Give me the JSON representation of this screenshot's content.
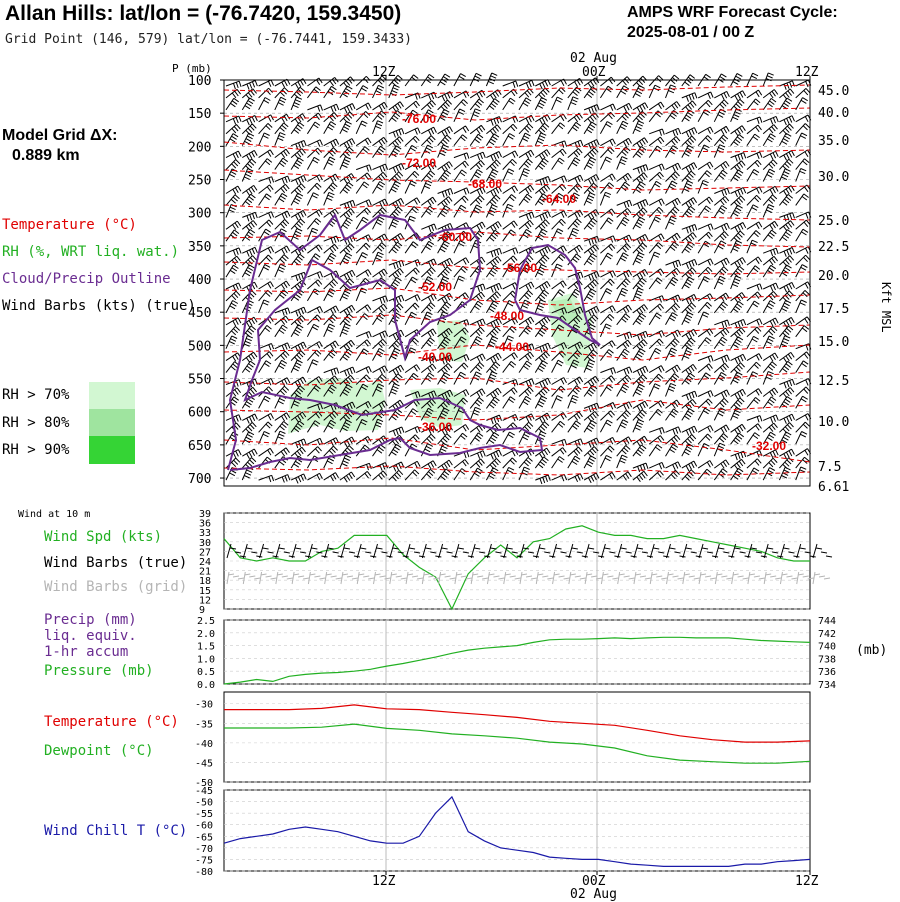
{
  "header": {
    "title": "Allan Hills:  lat/lon = (-76.7420, 159.3450)",
    "grid_point": "Grid Point (146, 579) lat/lon = (-76.7441, 159.3433)",
    "cycle_line1": "AMPS WRF Forecast Cycle:",
    "cycle_line2": "2025-08-01 / 00  Z",
    "model_grid_label": "Model Grid ΔX:",
    "model_grid_value": "0.889 km"
  },
  "legend": {
    "temperature": "Temperature (°C)",
    "rh": "RH (%, WRT liq. wat.)",
    "cloud": "Cloud/Precip Outline",
    "wind": "Wind Barbs (kts) (true)",
    "rh70": "RH > 70%",
    "rh80": "RH > 80%",
    "rh90": "RH > 90%",
    "colors": {
      "temperature": "#e00000",
      "rh": "#22b022",
      "cloud": "#6a2c91",
      "rh70": "#d2f7d2",
      "rh80": "#9fe49f",
      "rh90": "#35d435"
    }
  },
  "time_axis": {
    "top_labels": [
      "12Z",
      "00Z",
      "12Z"
    ],
    "date_label": "02 Aug",
    "bottom_labels": [
      "12Z",
      "00Z",
      "12Z"
    ]
  },
  "chart_data": [
    {
      "type": "heatmap",
      "name": "cross-section",
      "ylabel": "P (mb)",
      "yticks": [
        "100",
        "150",
        "200",
        "250",
        "300",
        "350",
        "400",
        "450",
        "500",
        "550",
        "600",
        "650",
        "700"
      ],
      "right_label": "Kft MSL",
      "right_ticks": [
        "45.0",
        "40.0",
        "35.0",
        "30.0",
        "25.0",
        "22.5",
        "20.0",
        "17.5",
        "15.0",
        "12.5",
        "10.0",
        "7.5",
        "6.61"
      ],
      "contour_labels": [
        "-76.00",
        "-72.00",
        "-68.00",
        "-64.00",
        "-60.00",
        "-56.00",
        "-52.00",
        "-48.00",
        "-44.00",
        "-40.00",
        "-36.00",
        "-32.00"
      ]
    },
    {
      "type": "line",
      "name": "wind-panel",
      "title": "Wind at 10 m",
      "labels": [
        "Wind Spd (kts)",
        "Wind Barbs (true)",
        "Wind Barbs (grid)"
      ],
      "yticks": [
        "39",
        "36",
        "33",
        "30",
        "27",
        "24",
        "21",
        "18",
        "15",
        "12",
        "9"
      ],
      "ylim": [
        9,
        39
      ],
      "series": [
        {
          "name": "Wind Spd (kts)",
          "color": "#22b022",
          "x": [
            0,
            1,
            2,
            3,
            4,
            5,
            6,
            7,
            8,
            9,
            10,
            11,
            12,
            13,
            14,
            15,
            16,
            17,
            18,
            19,
            20,
            21,
            22,
            23,
            24,
            25,
            26,
            27,
            28,
            29,
            30,
            31,
            32,
            33,
            34,
            35,
            36
          ],
          "values": [
            31,
            25,
            24,
            25,
            24,
            24,
            27,
            28,
            32,
            32,
            32,
            26,
            22,
            19,
            9,
            20,
            25,
            29,
            25,
            30,
            31,
            34,
            35,
            33,
            32,
            32,
            31,
            31,
            32,
            31,
            30,
            29,
            28,
            27,
            25,
            24,
            24
          ]
        }
      ]
    },
    {
      "type": "line",
      "name": "precip-pressure",
      "labels": [
        "Precip (mm)",
        "liq. equiv.",
        "1-hr accum",
        "Pressure (mb)"
      ],
      "yticks": [
        "2.5",
        "2.0",
        "1.5",
        "1.0",
        "0.5",
        "0.0"
      ],
      "ylim": [
        0,
        2.5
      ],
      "right_ticks": [
        "744",
        "742",
        "740",
        "738",
        "736",
        "734"
      ],
      "right_unit": "(mb)",
      "series": [
        {
          "name": "Pressure (mb)",
          "color": "#22b022",
          "x": [
            0,
            1,
            2,
            3,
            4,
            5,
            6,
            7,
            8,
            9,
            10,
            11,
            12,
            13,
            14,
            15,
            16,
            17,
            18,
            19,
            20,
            21,
            22,
            23,
            24,
            25,
            26,
            27,
            28,
            29,
            30,
            31,
            32,
            33,
            34,
            35,
            36
          ],
          "values": [
            734,
            734.3,
            734.7,
            734.4,
            735.2,
            735.5,
            735.7,
            735.8,
            736,
            736.3,
            736.8,
            737.2,
            737.7,
            738.2,
            738.8,
            739.3,
            739.6,
            739.8,
            740,
            740.5,
            740.9,
            741,
            741,
            741.1,
            741.2,
            741.1,
            741.2,
            741.3,
            741.3,
            741.2,
            741.2,
            741.2,
            741,
            740.8,
            740.7,
            740.6,
            740.5
          ]
        }
      ]
    },
    {
      "type": "line",
      "name": "temp-dewpoint",
      "labels": [
        "Temperature (°C)",
        "Dewpoint (°C)"
      ],
      "yticks": [
        "-30",
        "-35",
        "-40",
        "-45",
        "-50"
      ],
      "ylim": [
        -50,
        -27
      ],
      "series": [
        {
          "name": "Temperature (°C)",
          "color": "#e00000",
          "x": [
            0,
            4,
            6,
            8,
            10,
            12,
            14,
            16,
            18,
            20,
            22,
            24,
            26,
            28,
            30,
            32,
            34,
            36
          ],
          "values": [
            -31.5,
            -31.5,
            -31.2,
            -30.3,
            -31.3,
            -31.5,
            -32.2,
            -32.8,
            -33.5,
            -34.5,
            -35,
            -35.5,
            -36.8,
            -38.2,
            -39.2,
            -39.8,
            -39.8,
            -39.5
          ]
        },
        {
          "name": "Dewpoint (°C)",
          "color": "#22b022",
          "x": [
            0,
            4,
            6,
            8,
            10,
            12,
            14,
            16,
            18,
            20,
            22,
            24,
            26,
            28,
            30,
            32,
            34,
            36
          ],
          "values": [
            -36.2,
            -36.2,
            -36,
            -35.2,
            -36.3,
            -36.8,
            -37.7,
            -38.2,
            -38.8,
            -39.8,
            -40.3,
            -41.3,
            -43.3,
            -44.4,
            -44.8,
            -45.2,
            -45.2,
            -44.7
          ]
        }
      ]
    },
    {
      "type": "line",
      "name": "wind-chill",
      "labels": [
        "Wind Chill T (°C)"
      ],
      "yticks": [
        "-45",
        "-50",
        "-55",
        "-60",
        "-65",
        "-70",
        "-75",
        "-80"
      ],
      "ylim": [
        -80,
        -45
      ],
      "series": [
        {
          "name": "Wind Chill T (°C)",
          "color": "#1a1aa8",
          "x": [
            0,
            1,
            2,
            3,
            4,
            5,
            6,
            7,
            8,
            9,
            10,
            11,
            12,
            13,
            14,
            15,
            16,
            17,
            18,
            19,
            20,
            21,
            22,
            23,
            24,
            25,
            26,
            27,
            28,
            29,
            30,
            31,
            32,
            33,
            34,
            35,
            36
          ],
          "values": [
            -68,
            -66,
            -65,
            -64,
            -62,
            -61,
            -62,
            -63,
            -65,
            -67,
            -68,
            -68,
            -65,
            -55,
            -48,
            -63,
            -67,
            -70,
            -71,
            -72,
            -74,
            -74.5,
            -75,
            -75,
            -76,
            -77,
            -77.5,
            -78,
            -78,
            -78,
            -78,
            -78,
            -77,
            -77,
            -76,
            -75.5,
            -75
          ]
        }
      ]
    }
  ]
}
